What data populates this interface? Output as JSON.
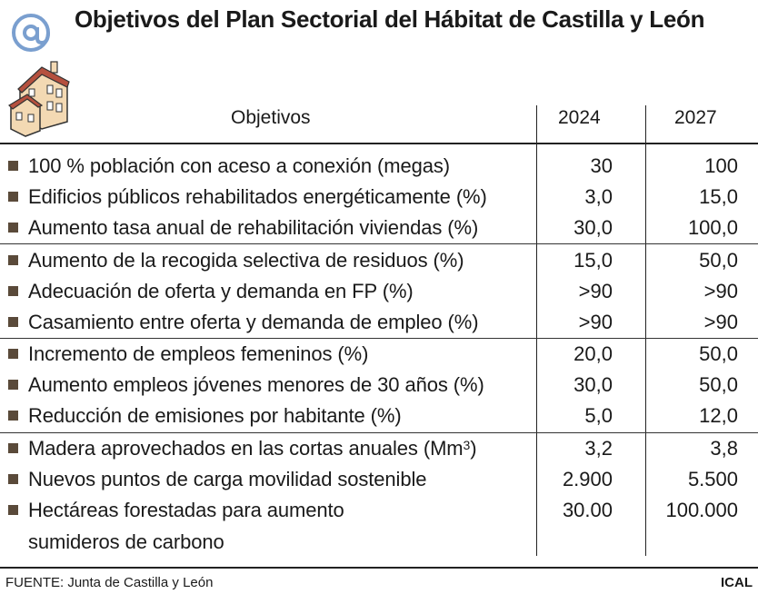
{
  "title": "Objetivos del Plan Sectorial del Hábitat de Castilla y León",
  "logo": {
    "at_icon": "at-sign-icon",
    "house_icon": "house-icon"
  },
  "table": {
    "headers": {
      "objective": "Objetivos",
      "year1": "2024",
      "year2": "2027"
    },
    "rows": [
      {
        "label": "100 % población con aceso a conexión (megas)",
        "v2024": "30",
        "v2027": "100"
      },
      {
        "label": "Edificios públicos rehabilitados energéticamente (%)",
        "v2024": "3,0",
        "v2027": "15,0"
      },
      {
        "label": "Aumento tasa anual de rehabilitación viviendas (%)",
        "v2024": "30,0",
        "v2027": "100,0"
      },
      {
        "label": "Aumento de la recogida selectiva de residuos (%)",
        "v2024": "15,0",
        "v2027": "50,0"
      },
      {
        "label": "Adecuación de oferta y demanda en FP (%)",
        "v2024": ">90",
        "v2027": ">90"
      },
      {
        "label": "Casamiento entre oferta y demanda de empleo (%)",
        "v2024": ">90",
        "v2027": ">90"
      },
      {
        "label": "Incremento de empleos femeninos (%)",
        "v2024": "20,0",
        "v2027": "50,0"
      },
      {
        "label": "Aumento empleos jóvenes menores de 30 años (%)",
        "v2024": "30,0",
        "v2027": "50,0"
      },
      {
        "label": "Reducción de emisiones por habitante (%)",
        "v2024": "5,0",
        "v2027": "12,0"
      },
      {
        "label": "Madera aprovechados en las cortas anuales (Mm",
        "label_sup": "3",
        "label_end": ")",
        "v2024": "3,2",
        "v2027": "3,8"
      },
      {
        "label": "Nuevos puntos de carga movilidad sostenible",
        "v2024": "2.900",
        "v2027": "5.500"
      },
      {
        "label": "Hectáreas forestadas para aumento",
        "label_line2": "sumideros de carbono",
        "v2024": "30.00",
        "v2027": "100.000"
      }
    ]
  },
  "footer": {
    "source": "FUENTE: Junta de Castilla y León",
    "brand": "ICAL"
  },
  "colors": {
    "bullet": "#5a4a3a",
    "house_wall": "#f3d9b3",
    "house_roof": "#b5503e",
    "at_sign": "#7a9fcf"
  }
}
